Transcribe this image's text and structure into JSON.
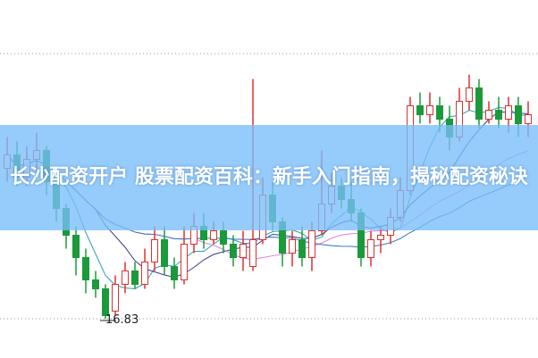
{
  "banner": {
    "title": "长沙配资开户 股票配资百科：新手入门指南，揭秘配资秘诀"
  },
  "chart_data": {
    "type": "candlestick",
    "title": "",
    "grid": false,
    "ylim": [
      16.6,
      22.8
    ],
    "annotations": [
      {
        "text": "16.83",
        "price": 16.83
      }
    ],
    "colors": {
      "up": "#e03030",
      "down": "#1a9a3a",
      "ma": [
        "#2aa0b0",
        "#3a3a8a",
        "#e080e0",
        "#3070c0"
      ]
    },
    "moving_averages": [
      5,
      10,
      20,
      30
    ],
    "candles": [
      [
        20.2,
        20.5,
        20.9,
        19.9
      ],
      [
        20.5,
        20.0,
        20.8,
        19.8
      ],
      [
        20.0,
        20.4,
        20.7,
        19.8
      ],
      [
        20.4,
        20.6,
        21.0,
        20.1
      ],
      [
        20.6,
        19.9,
        20.7,
        19.6
      ],
      [
        19.9,
        19.3,
        20.0,
        19.0
      ],
      [
        19.3,
        18.7,
        19.4,
        18.4
      ],
      [
        18.7,
        18.2,
        18.9,
        17.8
      ],
      [
        18.2,
        17.7,
        18.4,
        17.4
      ],
      [
        17.7,
        17.5,
        17.9,
        17.3
      ],
      [
        17.5,
        16.9,
        17.6,
        16.83
      ],
      [
        17.0,
        17.6,
        17.8,
        16.9
      ],
      [
        17.6,
        17.9,
        18.1,
        17.4
      ],
      [
        17.9,
        17.6,
        18.1,
        17.5
      ],
      [
        17.6,
        18.1,
        18.4,
        17.5
      ],
      [
        18.1,
        18.6,
        18.9,
        17.9
      ],
      [
        18.6,
        18.0,
        18.9,
        17.8
      ],
      [
        18.0,
        17.7,
        18.2,
        17.5
      ],
      [
        17.7,
        18.5,
        18.9,
        17.6
      ],
      [
        18.5,
        18.9,
        19.2,
        18.3
      ],
      [
        18.9,
        18.6,
        19.2,
        18.4
      ],
      [
        18.6,
        18.8,
        19.0,
        18.5
      ],
      [
        18.8,
        18.5,
        19.0,
        18.3
      ],
      [
        18.5,
        18.2,
        18.7,
        18.0
      ],
      [
        18.2,
        18.5,
        18.8,
        17.9
      ],
      [
        18.0,
        18.6,
        22.2,
        17.9
      ],
      [
        18.6,
        19.6,
        20.0,
        18.5
      ],
      [
        19.6,
        19.0,
        19.9,
        18.8
      ],
      [
        19.0,
        18.3,
        19.1,
        18.0
      ],
      [
        18.3,
        18.6,
        18.8,
        18.0
      ],
      [
        18.6,
        18.2,
        18.9,
        18.0
      ],
      [
        18.2,
        18.8,
        19.0,
        17.9
      ],
      [
        18.8,
        19.4,
        20.6,
        18.7
      ],
      [
        19.4,
        19.8,
        20.1,
        19.2
      ],
      [
        19.8,
        19.5,
        20.0,
        19.3
      ],
      [
        19.5,
        19.2,
        19.9,
        19.0
      ],
      [
        19.2,
        18.2,
        19.3,
        18.0
      ],
      [
        18.2,
        18.6,
        18.8,
        18.0
      ],
      [
        18.6,
        18.7,
        18.9,
        18.3
      ],
      [
        18.7,
        19.1,
        19.3,
        18.5
      ],
      [
        19.1,
        19.7,
        20.0,
        19.0
      ],
      [
        19.7,
        21.6,
        21.8,
        19.6
      ],
      [
        21.6,
        21.4,
        21.9,
        21.2
      ],
      [
        21.4,
        21.6,
        21.9,
        21.2
      ],
      [
        21.6,
        21.3,
        21.8,
        21.0
      ],
      [
        21.3,
        20.9,
        21.6,
        20.6
      ],
      [
        20.9,
        21.7,
        22.0,
        20.8
      ],
      [
        21.7,
        22.0,
        22.3,
        21.5
      ],
      [
        22.0,
        21.3,
        22.2,
        21.1
      ],
      [
        21.3,
        21.5,
        21.7,
        21.2
      ],
      [
        21.5,
        21.3,
        21.8,
        21.1
      ],
      [
        21.3,
        21.6,
        21.8,
        21.0
      ],
      [
        21.6,
        21.2,
        21.8,
        20.9
      ],
      [
        21.2,
        21.4,
        21.7,
        20.9
      ]
    ]
  }
}
